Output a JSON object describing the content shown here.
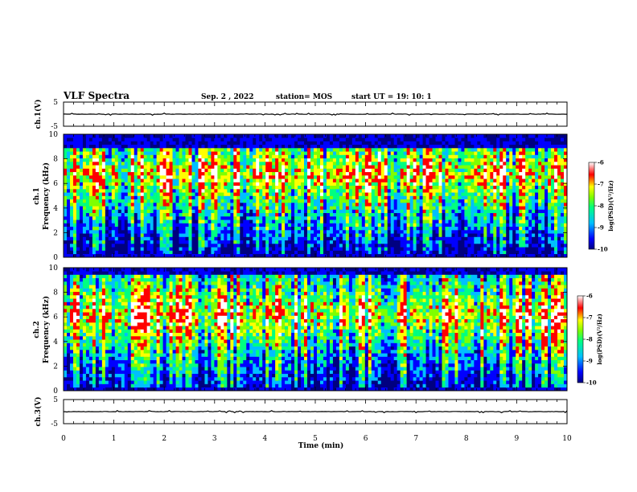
{
  "header": {
    "title": "VLF Spectra",
    "date": "Sep. 2  , 2022",
    "station": "station= MOS",
    "start_ut": "start  UT =   19: 10: 1"
  },
  "colors": {
    "colormap": [
      "#000080",
      "#0000ff",
      "#00bfff",
      "#00ff80",
      "#7fff00",
      "#ffff00",
      "#ff0000",
      "#ffffff"
    ]
  },
  "chart_data": [
    {
      "type": "line",
      "panel": "ch1-waveform",
      "ylabel": "ch.1(V)",
      "ylim": [
        -5,
        5
      ],
      "yticks": [
        "5",
        "-5"
      ],
      "xlim": [
        0,
        10
      ],
      "series": [
        {
          "values_approx_constant": 0
        }
      ]
    },
    {
      "type": "heatmap",
      "panel": "ch1-spectrogram",
      "ylabel": "ch.1\nFrequency (kHz)",
      "ylim": [
        0,
        10
      ],
      "yticks": [
        "0",
        "2",
        "4",
        "6",
        "8",
        "10"
      ],
      "xlim": [
        0,
        10
      ],
      "signal_band_khz": [
        0.3,
        9.0
      ],
      "colorbar": {
        "label": "log(PSD)(V²/Hz)",
        "range": [
          -10,
          -6
        ],
        "ticks": [
          "-6",
          "-7",
          "-8",
          "-9",
          "-10"
        ]
      }
    },
    {
      "type": "heatmap",
      "panel": "ch2-spectrogram",
      "ylabel": "ch.2\nFrequency (kHz)",
      "ylim": [
        0,
        10
      ],
      "yticks": [
        "0",
        "2",
        "4",
        "6",
        "8",
        "10"
      ],
      "xlim": [
        0,
        10
      ],
      "signal_band_khz": [
        0.3,
        9.5
      ],
      "colorbar": {
        "label": "log(PSD)(V²/Hz)",
        "range": [
          -10,
          -6
        ],
        "ticks": [
          "-6",
          "-7",
          "-8",
          "-9",
          "-10"
        ]
      }
    },
    {
      "type": "line",
      "panel": "ch3-waveform",
      "ylabel": "ch.3(V)",
      "ylim": [
        -5,
        5
      ],
      "yticks": [
        "5",
        "-5"
      ],
      "xlim": [
        0,
        10
      ],
      "series": [
        {
          "values_approx_constant": 0
        }
      ]
    }
  ],
  "xaxis": {
    "label": "Time  (min)",
    "range": [
      0,
      10
    ],
    "ticks": [
      "0",
      "1",
      "2",
      "3",
      "4",
      "5",
      "6",
      "7",
      "8",
      "9",
      "10"
    ]
  }
}
